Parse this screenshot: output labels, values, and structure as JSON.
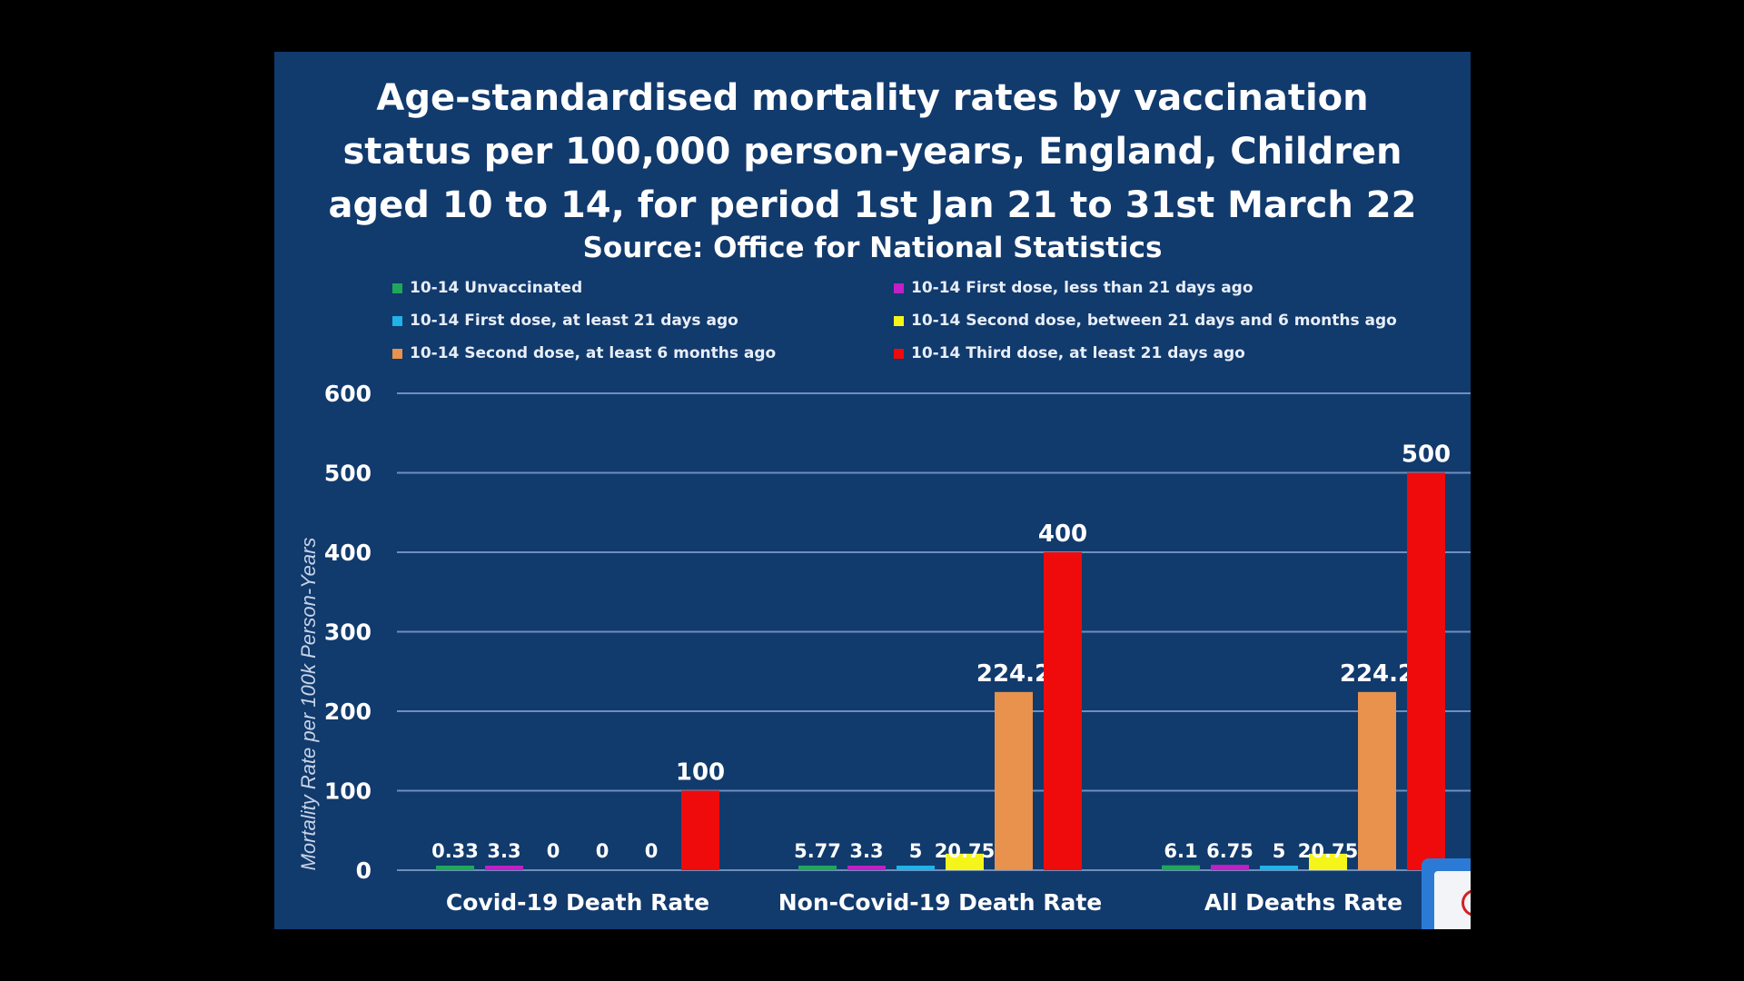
{
  "slide": {
    "title_lines": [
      "Age-standardised mortality rates by vaccination",
      "status per 100,000 person-years, England, Children",
      "aged 10 to 14, for period 1st Jan 21 to 31st March 22"
    ],
    "source": "Source: Office for National Statistics"
  },
  "chart_data": {
    "type": "bar",
    "title": "Age-standardised mortality rates by vaccination status per 100,000 person-years, England, Children aged 10 to 14, for period 1st Jan 21 to 31st March 22",
    "subtitle": "Source: Office for National Statistics",
    "ylabel": "Mortality Rate per 100k Person-Years",
    "xlabel": "",
    "ylim": [
      0,
      600
    ],
    "yticks": [
      "0",
      "100",
      "200",
      "300",
      "400",
      "500",
      "600"
    ],
    "grid": true,
    "legend_position": "top",
    "categories": [
      "Covid-19 Death Rate",
      "Non-Covid-19 Death Rate",
      "All Deaths Rate"
    ],
    "series": [
      {
        "name": "10-14 Unvaccinated",
        "color": "#1fa85a",
        "values": [
          0.33,
          5.77,
          6.1
        ],
        "labels": [
          "0.33",
          "5.77",
          "6.1"
        ]
      },
      {
        "name": "10-14 First dose, less than 21 days ago",
        "color": "#c21fc7",
        "values": [
          3.3,
          3.3,
          6.75
        ],
        "labels": [
          "3.3",
          "3.3",
          "6.75"
        ]
      },
      {
        "name": "10-14 First dose, at least 21 days ago",
        "color": "#1fb3e8",
        "values": [
          0,
          5,
          5
        ],
        "labels": [
          "0",
          "5",
          "5"
        ]
      },
      {
        "name": "10-14 Second dose, between 21 days and 6 months ago",
        "color": "#f5f51a",
        "values": [
          0,
          20.75,
          20.75
        ],
        "labels": [
          "0",
          "20.75",
          "20.75"
        ]
      },
      {
        "name": "10-14 Second dose, at least 6 months ago",
        "color": "#e8924e",
        "values": [
          0,
          224.2,
          224.2
        ],
        "labels": [
          "0",
          "224.2",
          "224.2"
        ]
      },
      {
        "name": "10-14 Third dose, at least 21 days ago",
        "color": "#ef0b0b",
        "values": [
          100,
          400,
          500
        ],
        "labels": [
          "100",
          "400",
          "500"
        ]
      }
    ]
  }
}
